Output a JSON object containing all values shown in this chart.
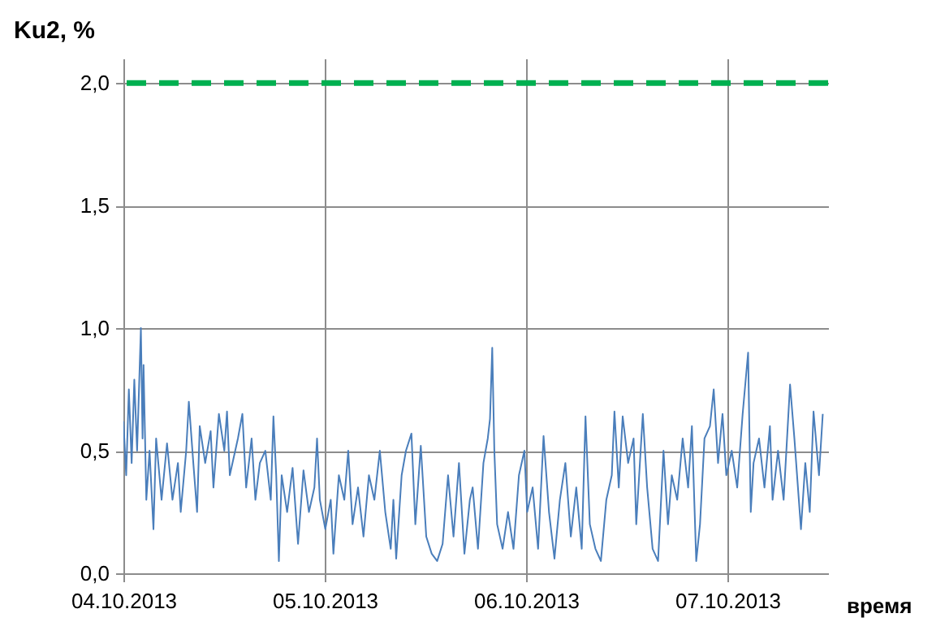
{
  "chart_data": {
    "type": "line",
    "xlabel": "время",
    "ylabel": "Ku2, %",
    "x": [
      "2013-10-04T00:00",
      "2013-10-04T00:20",
      "2013-10-04T00:39",
      "2013-10-04T00:59",
      "2013-10-04T01:18",
      "2013-10-04T01:38",
      "2013-10-04T02:05",
      "2013-10-04T02:17",
      "2013-10-04T02:24",
      "2013-10-04T02:44",
      "2013-10-04T03:07",
      "2013-10-04T03:35",
      "2013-10-04T03:54",
      "2013-10-04T04:33",
      "2013-10-04T05:12",
      "2013-10-04T05:51",
      "2013-10-04T06:30",
      "2013-10-04T06:50",
      "2013-10-04T07:29",
      "2013-10-04T07:48",
      "2013-10-04T08:20",
      "2013-10-04T08:47",
      "2013-10-04T09:06",
      "2013-10-04T09:45",
      "2013-10-04T10:24",
      "2013-10-04T10:44",
      "2013-10-04T11:23",
      "2013-10-04T12:02",
      "2013-10-04T12:21",
      "2013-10-04T12:41",
      "2013-10-04T13:39",
      "2013-10-04T14:11",
      "2013-10-04T14:38",
      "2013-10-04T15:17",
      "2013-10-04T15:44",
      "2013-10-04T16:16",
      "2013-10-04T16:55",
      "2013-10-04T17:34",
      "2013-10-04T17:53",
      "2013-10-04T18:13",
      "2013-10-04T18:32",
      "2013-10-04T18:52",
      "2013-10-04T19:31",
      "2013-10-04T20:10",
      "2013-10-04T20:49",
      "2013-10-04T21:28",
      "2013-10-04T22:07",
      "2013-10-04T22:46",
      "2013-10-04T23:05",
      "2013-10-04T23:25",
      "2013-10-05T00:04",
      "2013-10-05T00:43",
      "2013-10-05T01:02",
      "2013-10-05T01:41",
      "2013-10-05T02:20",
      "2013-10-05T02:48",
      "2013-10-05T03:19",
      "2013-10-05T03:58",
      "2013-10-05T04:37",
      "2013-10-05T05:16",
      "2013-10-05T05:55",
      "2013-10-05T06:34",
      "2013-10-05T07:13",
      "2013-10-05T07:52",
      "2013-10-05T08:11",
      "2013-10-05T08:31",
      "2013-10-05T09:10",
      "2013-10-05T09:41",
      "2013-10-05T10:20",
      "2013-10-05T10:48",
      "2013-10-05T11:27",
      "2013-10-05T12:06",
      "2013-10-05T12:45",
      "2013-10-05T13:24",
      "2013-10-05T14:03",
      "2013-10-05T14:42",
      "2013-10-05T15:21",
      "2013-10-05T16:00",
      "2013-10-05T16:39",
      "2013-10-05T17:18",
      "2013-10-05T17:38",
      "2013-10-05T18:16",
      "2013-10-05T18:55",
      "2013-10-05T19:26",
      "2013-10-05T19:42",
      "2013-10-05T19:58",
      "2013-10-05T20:13",
      "2013-10-05T20:33",
      "2013-10-05T21:12",
      "2013-10-05T21:51",
      "2013-10-05T22:30",
      "2013-10-05T23:09",
      "2013-10-05T23:48",
      "2013-10-06T00:08",
      "2013-10-06T00:47",
      "2013-10-06T01:26",
      "2013-10-06T02:05",
      "2013-10-06T02:44",
      "2013-10-06T03:23",
      "2013-10-06T04:02",
      "2013-10-06T04:41",
      "2013-10-06T05:20",
      "2013-10-06T05:59",
      "2013-10-06T06:38",
      "2013-10-06T07:05",
      "2013-10-06T07:36",
      "2013-10-06T08:16",
      "2013-10-06T08:55",
      "2013-10-06T09:34",
      "2013-10-06T10:13",
      "2013-10-06T10:32",
      "2013-10-06T11:03",
      "2013-10-06T11:31",
      "2013-10-06T12:10",
      "2013-10-06T12:49",
      "2013-10-06T13:08",
      "2013-10-06T13:55",
      "2013-10-06T14:26",
      "2013-10-06T15:05",
      "2013-10-06T15:44",
      "2013-10-06T16:23",
      "2013-10-06T16:55",
      "2013-10-06T17:22",
      "2013-10-06T18:01",
      "2013-10-06T18:40",
      "2013-10-06T19:19",
      "2013-10-06T19:46",
      "2013-10-06T20:17",
      "2013-10-06T20:44",
      "2013-10-06T21:16",
      "2013-10-06T21:55",
      "2013-10-06T22:22",
      "2013-10-06T22:53",
      "2013-10-06T23:25",
      "2013-10-06T23:52",
      "2013-10-07T00:31",
      "2013-10-07T01:10",
      "2013-10-07T01:49",
      "2013-10-07T02:28",
      "2013-10-07T02:47",
      "2013-10-07T03:07",
      "2013-10-07T03:46",
      "2013-10-07T04:25",
      "2013-10-07T05:04",
      "2013-10-07T05:23",
      "2013-10-07T06:02",
      "2013-10-07T06:42",
      "2013-10-07T07:28",
      "2013-10-07T07:59",
      "2013-10-07T08:46",
      "2013-10-07T09:17",
      "2013-10-07T09:49",
      "2013-10-07T10:16",
      "2013-10-07T10:55",
      "2013-10-07T11:22"
    ],
    "series": [
      {
        "color": "#4a7ebb",
        "values": [
          0.62,
          0.4,
          0.75,
          0.45,
          0.79,
          0.5,
          1.0,
          0.55,
          0.85,
          0.3,
          0.5,
          0.18,
          0.55,
          0.3,
          0.53,
          0.3,
          0.45,
          0.25,
          0.5,
          0.7,
          0.45,
          0.25,
          0.6,
          0.45,
          0.58,
          0.35,
          0.65,
          0.5,
          0.66,
          0.4,
          0.55,
          0.65,
          0.35,
          0.55,
          0.3,
          0.45,
          0.5,
          0.3,
          0.64,
          0.4,
          0.05,
          0.4,
          0.25,
          0.43,
          0.12,
          0.42,
          0.25,
          0.35,
          0.55,
          0.3,
          0.18,
          0.3,
          0.08,
          0.4,
          0.3,
          0.5,
          0.2,
          0.35,
          0.15,
          0.4,
          0.3,
          0.5,
          0.25,
          0.1,
          0.3,
          0.06,
          0.4,
          0.5,
          0.57,
          0.2,
          0.52,
          0.15,
          0.08,
          0.05,
          0.12,
          0.4,
          0.15,
          0.45,
          0.08,
          0.3,
          0.35,
          0.1,
          0.45,
          0.55,
          0.63,
          0.92,
          0.5,
          0.2,
          0.1,
          0.25,
          0.1,
          0.4,
          0.5,
          0.25,
          0.35,
          0.1,
          0.56,
          0.25,
          0.06,
          0.3,
          0.45,
          0.15,
          0.35,
          0.1,
          0.64,
          0.2,
          0.1,
          0.05,
          0.3,
          0.4,
          0.66,
          0.35,
          0.64,
          0.45,
          0.55,
          0.2,
          0.65,
          0.35,
          0.1,
          0.05,
          0.5,
          0.2,
          0.4,
          0.3,
          0.55,
          0.35,
          0.6,
          0.05,
          0.2,
          0.55,
          0.6,
          0.75,
          0.45,
          0.65,
          0.4,
          0.5,
          0.35,
          0.65,
          0.9,
          0.25,
          0.45,
          0.55,
          0.35,
          0.6,
          0.3,
          0.5,
          0.3,
          0.77,
          0.55,
          0.18,
          0.45,
          0.25,
          0.66,
          0.4,
          0.65
        ]
      }
    ],
    "xlim": [
      "2013-10-04T00:00",
      "2013-10-07T12:00"
    ],
    "xticks": [
      {
        "value": "2013-10-04T00:00",
        "label": "04.10.2013"
      },
      {
        "value": "2013-10-05T00:00",
        "label": "05.10.2013"
      },
      {
        "value": "2013-10-06T00:00",
        "label": "06.10.2013"
      },
      {
        "value": "2013-10-07T00:00",
        "label": "07.10.2013"
      }
    ],
    "ylim": [
      0,
      2.1
    ],
    "yticks": [
      {
        "value": 0,
        "label": "0,0"
      },
      {
        "value": 0.5,
        "label": "0,5"
      },
      {
        "value": 1,
        "label": "1,0"
      },
      {
        "value": 1.5,
        "label": "1,5"
      },
      {
        "value": 2,
        "label": "2,0"
      }
    ],
    "ref_lines": [
      {
        "axis": "y",
        "value": 2,
        "color": "#00b050",
        "line_style": "dashed"
      }
    ],
    "grid": true
  }
}
